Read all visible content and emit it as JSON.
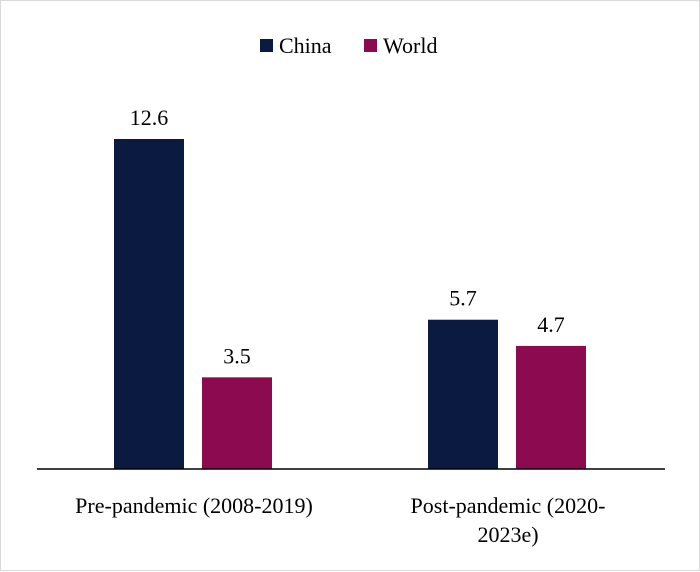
{
  "chart_data": {
    "type": "bar",
    "categories": [
      "Pre-pandemic (2008-2019)",
      "Post-pandemic (2020-2023e)"
    ],
    "category_label_lines": [
      [
        "Pre-pandemic (2008-2019)"
      ],
      [
        "Post-pandemic (2020-",
        "2023e)"
      ]
    ],
    "series": [
      {
        "name": "China",
        "values": [
          12.6,
          5.7
        ],
        "color": "#0b1a40"
      },
      {
        "name": "World",
        "values": [
          3.5,
          4.7
        ],
        "color": "#8b0a50"
      }
    ],
    "data_labels": [
      [
        "12.6",
        "5.7"
      ],
      [
        "3.5",
        "4.7"
      ]
    ],
    "ylim": [
      0,
      12.6
    ],
    "grid": false,
    "legend": "top-center",
    "title": "",
    "xlabel": "",
    "ylabel": ""
  }
}
